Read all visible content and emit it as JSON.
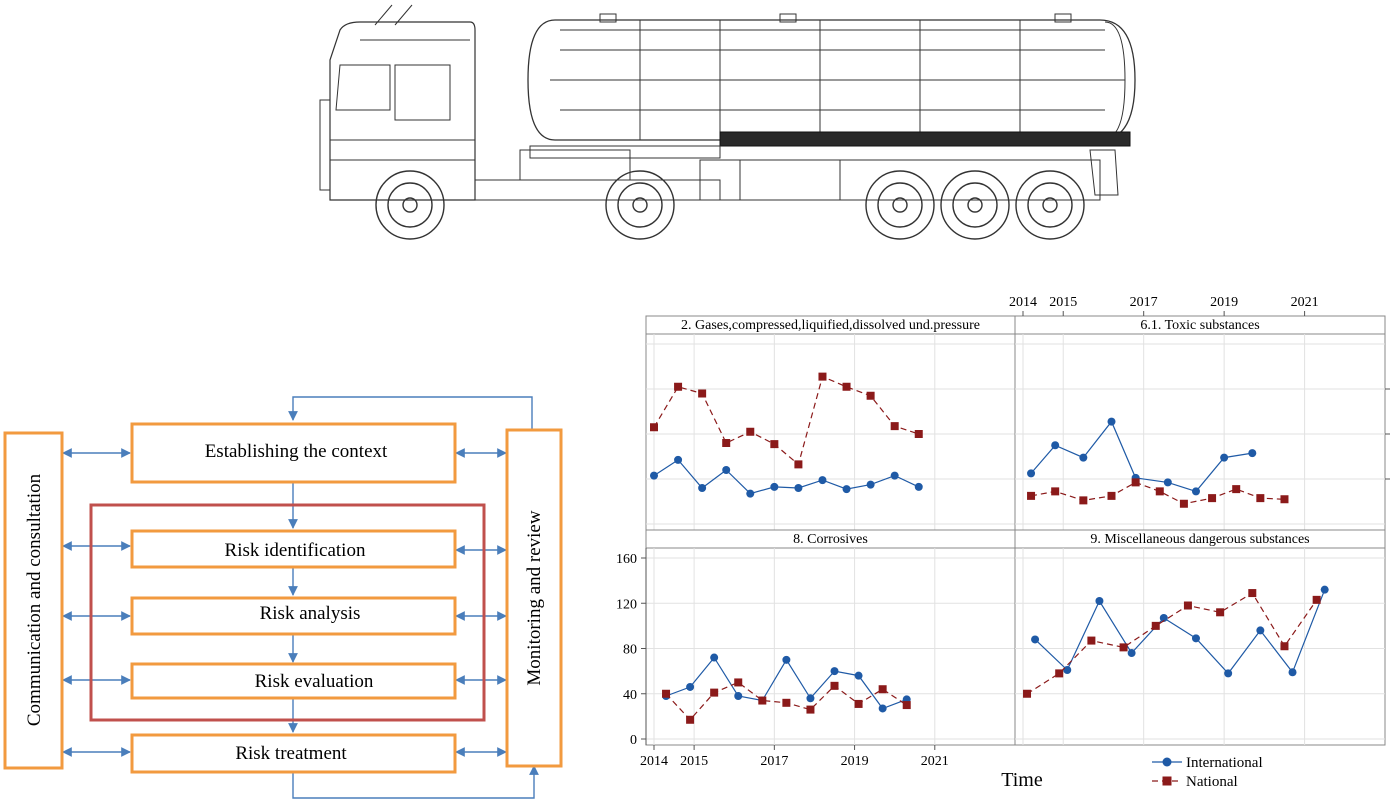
{
  "risk_process": {
    "side_left": "Communication and consultation",
    "side_right": "Monitoring and review",
    "steps": [
      "Establishing the context",
      "Risk identification",
      "Risk analysis",
      "Risk evaluation",
      "Risk treatment"
    ],
    "colors": {
      "box_border": "#f29a3f",
      "assessment_border": "#c0504d",
      "arrow": "#4a7ebb"
    }
  },
  "chart_data": {
    "type": "line",
    "x_axis": {
      "label": "Time",
      "ticks": [
        2014,
        2015,
        2017,
        2019,
        2021
      ]
    },
    "y_axis": {
      "ticks": [
        0,
        40,
        80,
        120,
        160
      ],
      "ylim": [
        0,
        160
      ]
    },
    "x_range": [
      2014,
      2022.8
    ],
    "legend": {
      "placement": "bottom-right",
      "items": [
        {
          "name": "International",
          "color": "#1f5aa6",
          "marker": "circle",
          "dash": "solid"
        },
        {
          "name": "National",
          "color": "#8b1a1a",
          "marker": "square",
          "dash": "dashed"
        }
      ]
    },
    "grid": true,
    "panels": [
      {
        "title": "2. Gases,compressed,liquified,dissolved und.pressure",
        "series": [
          {
            "name": "International",
            "x": [
              2014.0,
              2014.6,
              2015.2,
              2015.8,
              2016.4,
              2017.0,
              2017.6,
              2018.2,
              2018.8,
              2019.4,
              2020.0,
              2020.6
            ],
            "y": [
              43,
              57,
              32,
              48,
              27,
              33,
              32,
              39,
              31,
              35,
              43,
              33
            ]
          },
          {
            "name": "National",
            "x": [
              2014.0,
              2014.6,
              2015.2,
              2015.8,
              2016.4,
              2017.0,
              2017.6,
              2018.2,
              2018.8,
              2019.4,
              2020.0,
              2020.6
            ],
            "y": [
              86,
              122,
              116,
              72,
              82,
              71,
              53,
              131,
              122,
              114,
              87,
              80
            ]
          }
        ]
      },
      {
        "title": "6.1. Toxic substances",
        "series": [
          {
            "name": "International",
            "x": [
              2014.2,
              2014.8,
              2015.5,
              2016.2,
              2016.8,
              2017.6,
              2018.3,
              2019.0,
              2019.7
            ],
            "y": [
              45,
              70,
              59,
              91,
              41,
              37,
              29,
              59,
              63
            ]
          },
          {
            "name": "National",
            "x": [
              2014.2,
              2014.8,
              2015.5,
              2016.2,
              2016.8,
              2017.4,
              2018.0,
              2018.7,
              2019.3,
              2019.9,
              2020.5
            ],
            "y": [
              25,
              29,
              21,
              25,
              37,
              29,
              18,
              23,
              31,
              23,
              22
            ]
          }
        ]
      },
      {
        "title": "8. Corrosives",
        "series": [
          {
            "name": "International",
            "x": [
              2014.3,
              2014.9,
              2015.5,
              2016.1,
              2016.7,
              2017.3,
              2017.9,
              2018.5,
              2019.1,
              2019.7,
              2020.3
            ],
            "y": [
              38,
              46,
              72,
              38,
              34,
              70,
              36,
              60,
              56,
              27,
              35
            ]
          },
          {
            "name": "National",
            "x": [
              2014.3,
              2014.9,
              2015.5,
              2016.1,
              2016.7,
              2017.3,
              2017.9,
              2018.5,
              2019.1,
              2019.7,
              2020.3
            ],
            "y": [
              40,
              17,
              41,
              50,
              34,
              32,
              26,
              47,
              31,
              44,
              30
            ]
          }
        ]
      },
      {
        "title": "9. Miscellaneous dangerous substances",
        "series": [
          {
            "name": "International",
            "x": [
              2014.3,
              2015.1,
              2015.9,
              2016.7,
              2017.5,
              2018.3,
              2019.1,
              2019.9,
              2020.7,
              2021.5
            ],
            "y": [
              88,
              61,
              122,
              76,
              107,
              89,
              58,
              96,
              59,
              132
            ]
          },
          {
            "name": "National",
            "x": [
              2014.1,
              2014.9,
              2015.7,
              2016.5,
              2017.3,
              2018.1,
              2018.9,
              2019.7,
              2020.5,
              2021.3
            ],
            "y": [
              40,
              58,
              87,
              81,
              100,
              118,
              112,
              129,
              82,
              123
            ]
          }
        ]
      }
    ]
  }
}
